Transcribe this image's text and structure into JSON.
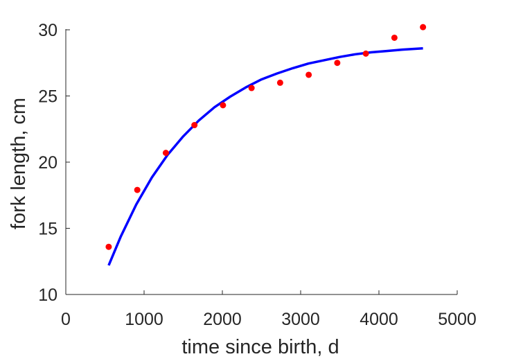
{
  "chart_data": {
    "type": "scatter",
    "title": "",
    "xlabel": "time since birth, d",
    "ylabel": "fork length, cm",
    "xlim": [
      0,
      5000
    ],
    "ylim": [
      10,
      30
    ],
    "xticks": [
      0,
      1000,
      2000,
      3000,
      4000,
      5000
    ],
    "yticks": [
      10,
      15,
      20,
      25,
      30
    ],
    "grid": false,
    "box": "left-bottom axes only",
    "series": [
      {
        "kind": "points",
        "color": "#ff0000",
        "x": [
          548,
          913,
          1278,
          1643,
          2008,
          2373,
          2738,
          3103,
          3468,
          3833,
          4198,
          4563
        ],
        "y": [
          13.6,
          17.9,
          20.7,
          22.8,
          24.3,
          25.6,
          26.0,
          26.6,
          27.5,
          28.2,
          29.4,
          30.2
        ]
      },
      {
        "kind": "fitted-curve",
        "color": "#0000ff",
        "x": [
          548,
          700,
          900,
          1100,
          1300,
          1500,
          1700,
          1900,
          2100,
          2300,
          2500,
          2700,
          2900,
          3100,
          3300,
          3500,
          3700,
          3900,
          4100,
          4300,
          4563
        ],
        "y": [
          12.2,
          14.35,
          16.8,
          18.85,
          20.55,
          21.95,
          23.15,
          24.15,
          24.95,
          25.65,
          26.25,
          26.7,
          27.1,
          27.45,
          27.7,
          27.95,
          28.15,
          28.3,
          28.4,
          28.5,
          28.6
        ]
      }
    ]
  }
}
